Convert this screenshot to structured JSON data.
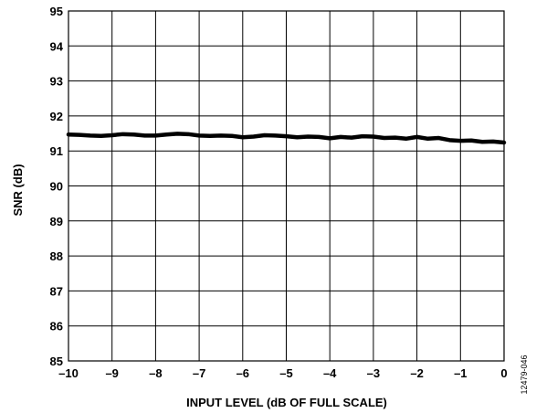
{
  "chart_data": {
    "type": "line",
    "title": "",
    "xlabel": "INPUT LEVEL (dB OF FULL SCALE)",
    "ylabel": "SNR (dB)",
    "xlim": [
      -10,
      0
    ],
    "ylim": [
      85,
      95
    ],
    "x_ticks": [
      -10,
      -9,
      -8,
      -7,
      -6,
      -5,
      -4,
      -3,
      -2,
      -1,
      0
    ],
    "x_tick_labels": [
      "–10",
      "–9",
      "–8",
      "–7",
      "–6",
      "–5",
      "–4",
      "–3",
      "–2",
      "–1",
      "0"
    ],
    "y_ticks": [
      85,
      86,
      87,
      88,
      89,
      90,
      91,
      92,
      93,
      94,
      95
    ],
    "y_tick_labels": [
      "85",
      "86",
      "87",
      "88",
      "89",
      "90",
      "91",
      "92",
      "93",
      "94",
      "95"
    ],
    "grid": true,
    "legend": "none",
    "series": [
      {
        "color": "#000000",
        "x": [
          -10,
          -9.75,
          -9.5,
          -9.25,
          -9,
          -8.75,
          -8.5,
          -8.25,
          -8,
          -7.75,
          -7.5,
          -7.25,
          -7,
          -6.75,
          -6.5,
          -6.25,
          -6,
          -5.75,
          -5.5,
          -5.25,
          -5,
          -4.75,
          -4.5,
          -4.25,
          -4,
          -3.75,
          -3.5,
          -3.25,
          -3,
          -2.75,
          -2.5,
          -2.25,
          -2,
          -1.75,
          -1.5,
          -1.25,
          -1,
          -0.75,
          -0.5,
          -0.25,
          0
        ],
        "y": [
          91.47,
          91.46,
          91.44,
          91.43,
          91.45,
          91.48,
          91.47,
          91.44,
          91.44,
          91.47,
          91.49,
          91.48,
          91.44,
          91.43,
          91.44,
          91.43,
          91.39,
          91.41,
          91.45,
          91.44,
          91.42,
          91.39,
          91.41,
          91.4,
          91.36,
          91.4,
          91.38,
          91.42,
          91.41,
          91.37,
          91.38,
          91.35,
          91.4,
          91.35,
          91.37,
          91.31,
          91.29,
          91.3,
          91.26,
          91.27,
          91.24
        ]
      }
    ],
    "figure_id": "12479-046"
  }
}
